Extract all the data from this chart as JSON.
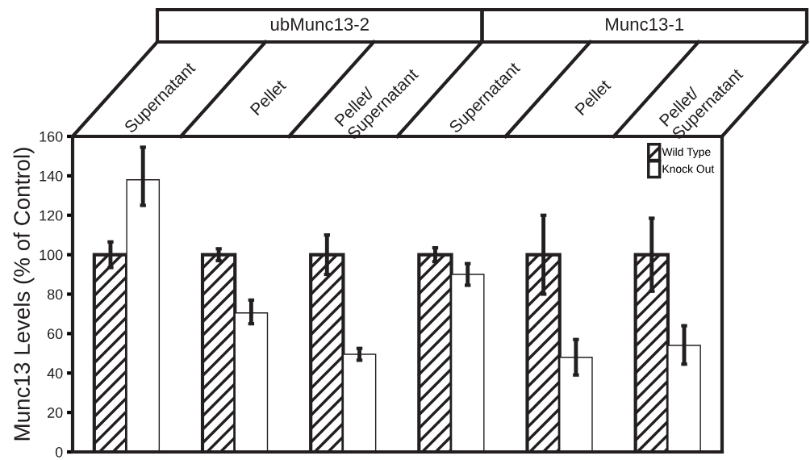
{
  "chart_data": {
    "type": "bar",
    "ylabel": "Munc13 Levels (% of Control)",
    "categories": [
      "Supernatant",
      "Pellet",
      "Pellet/\nSupernatant",
      "Supernatant",
      "Pellet",
      "Pellet/\nSupernatant"
    ],
    "series": [
      {
        "name": "Wild Type",
        "color": "#231f20",
        "values": [
          100,
          100,
          100,
          100,
          100,
          100
        ],
        "errors": [
          6.5,
          3,
          10,
          3.5,
          20,
          18.5
        ]
      },
      {
        "name": "Knock Out",
        "color": "#ffffff",
        "values": [
          138,
          70.5,
          49.5,
          90,
          48,
          54
        ],
        "errors": [
          [
            125,
            154.5
          ],
          [
            65,
            77
          ],
          [
            46.5,
            52.5
          ],
          [
            84.5,
            95.5
          ],
          [
            39,
            57
          ],
          [
            44.5,
            64
          ]
        ]
      }
    ],
    "annotations": [
      "ubMunc13-2",
      "Munc13-1"
    ],
    "ylim": [
      0,
      160
    ],
    "yticks": [
      0,
      20,
      40,
      60,
      80,
      100,
      120,
      140,
      160
    ],
    "tick_labels": "y",
    "grid": false,
    "legend": "top right"
  }
}
